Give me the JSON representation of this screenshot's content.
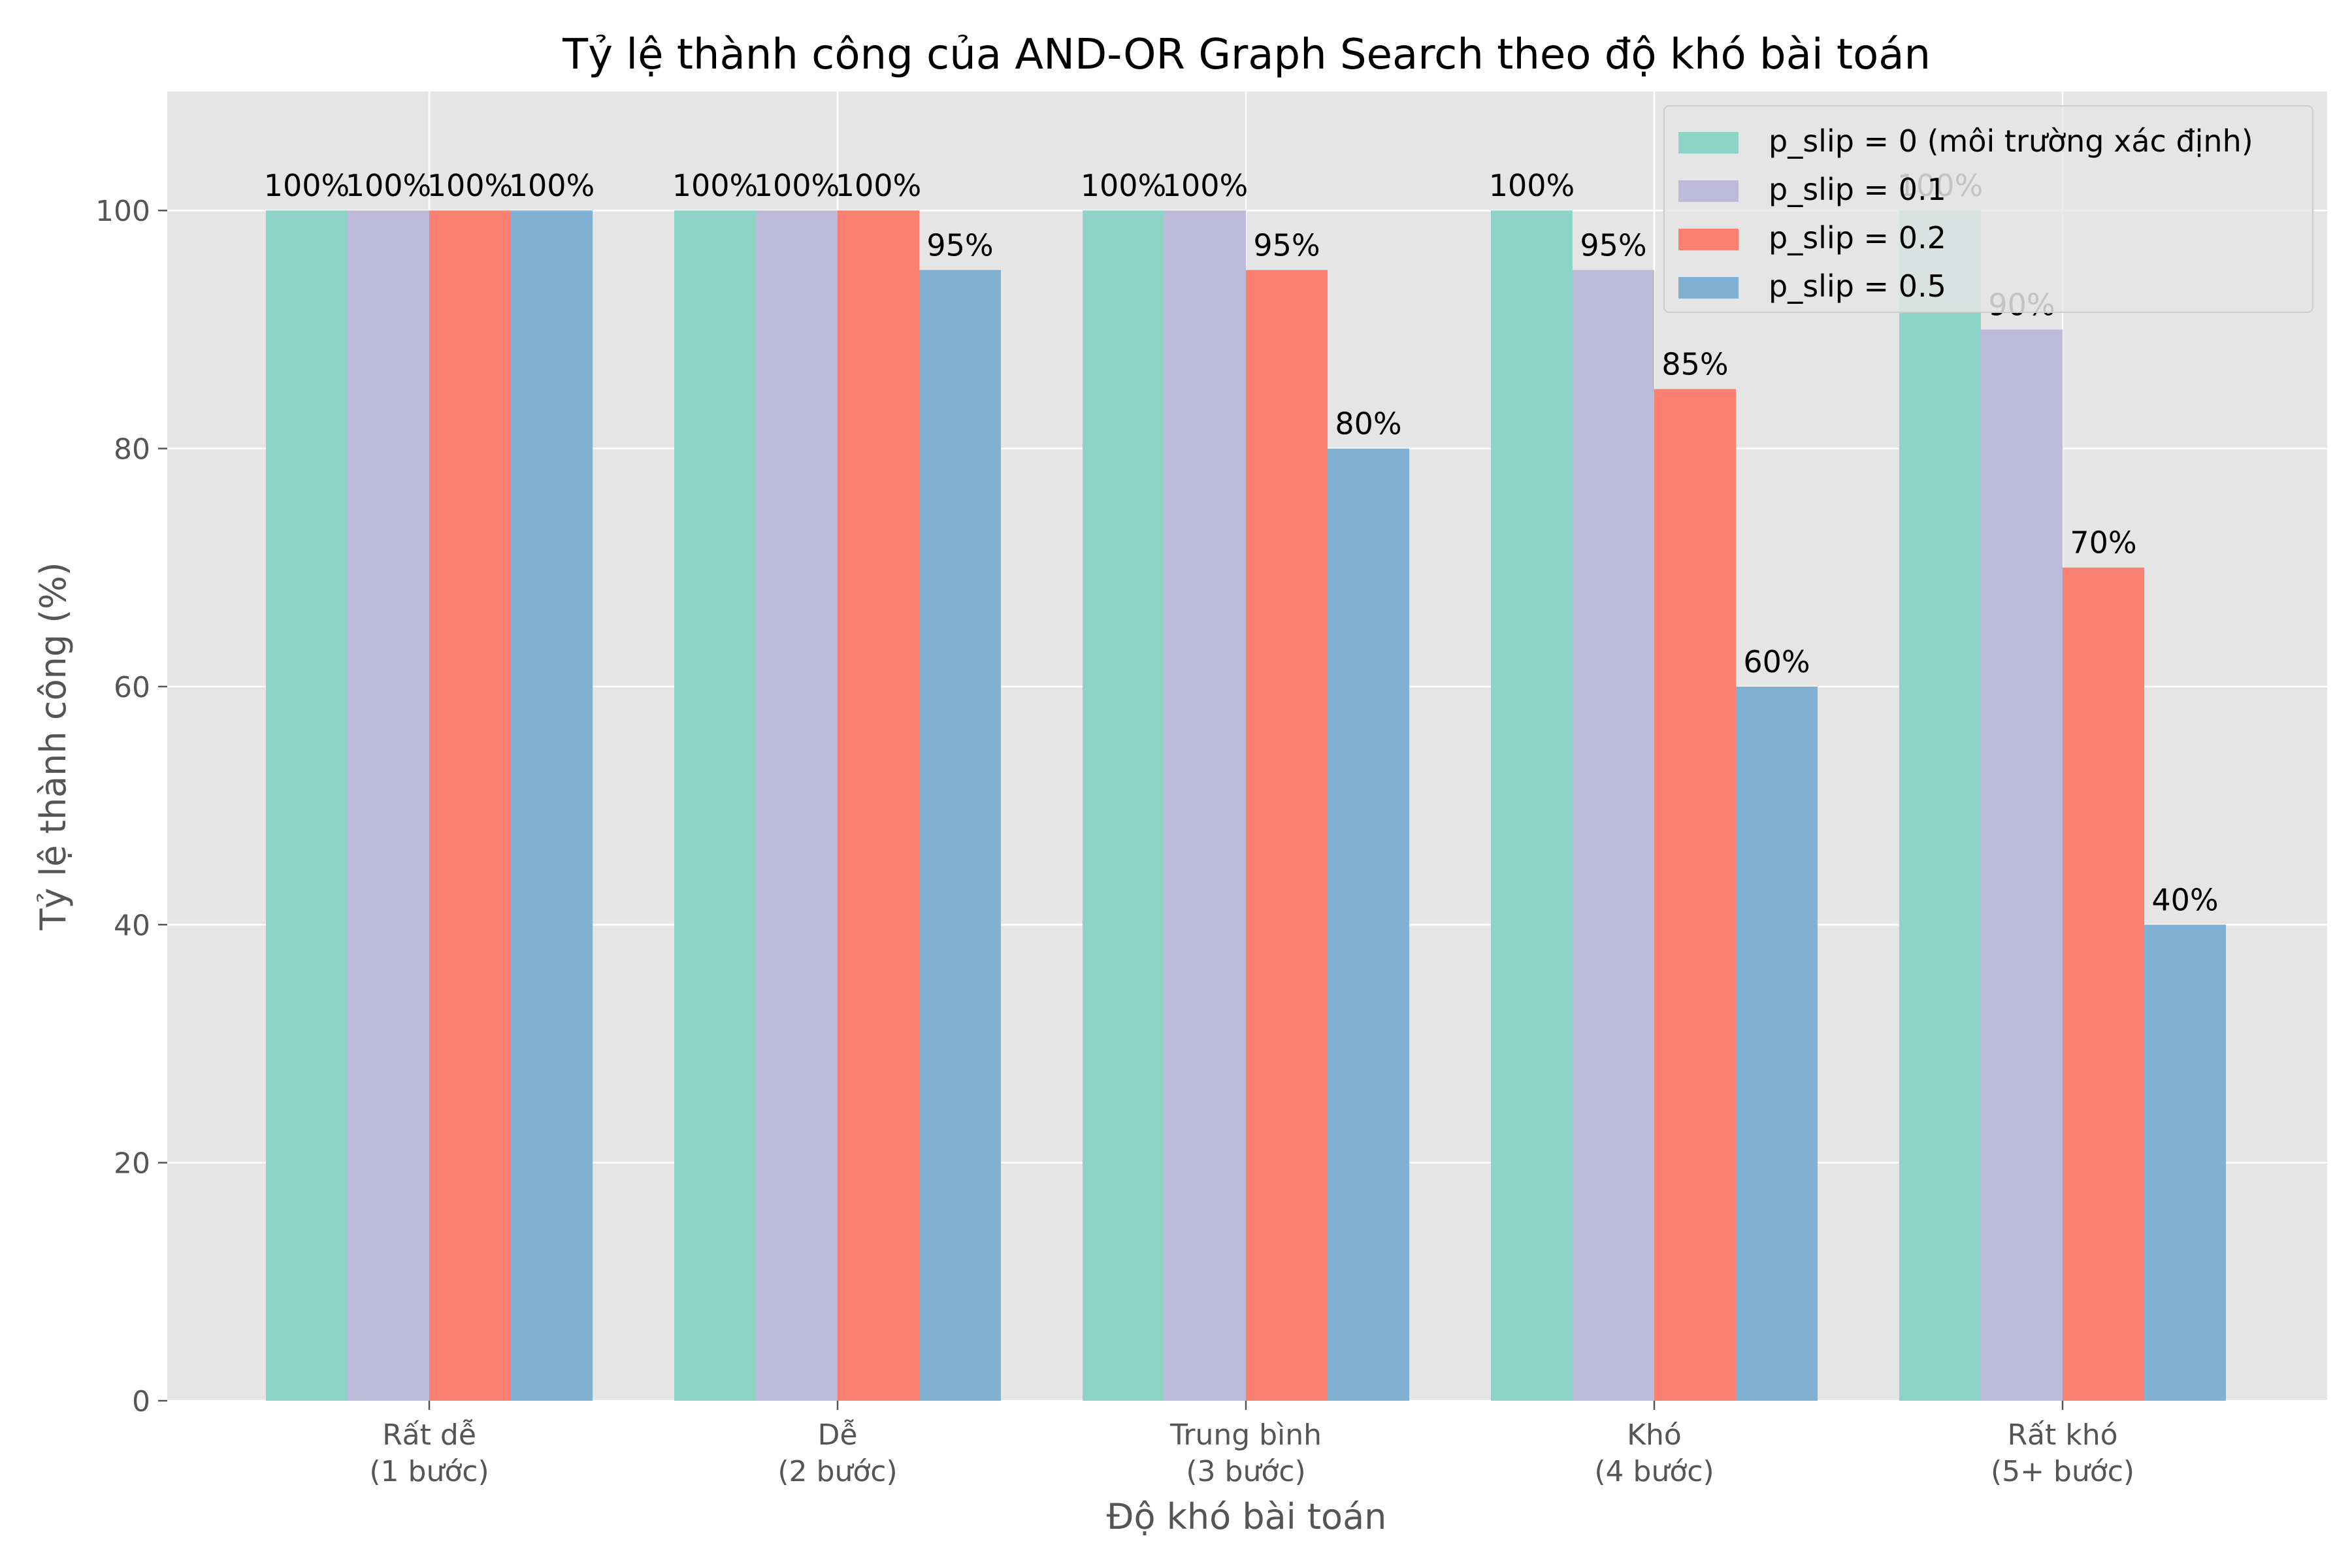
{
  "chart_data": {
    "type": "bar",
    "title": "Tỷ lệ thành công của AND-OR Graph Search theo độ khó bài toán",
    "xlabel": "Độ khó bài toán",
    "ylabel": "Tỷ lệ thành công (%)",
    "ylim": [
      0,
      110
    ],
    "yticks": [
      0,
      20,
      40,
      60,
      80,
      100
    ],
    "grid": true,
    "legend_position": "top-right",
    "categories": [
      [
        "Rất dễ",
        "(1 bước)"
      ],
      [
        "Dễ",
        "(2 bước)"
      ],
      [
        "Trung bình",
        "(3 bước)"
      ],
      [
        "Khó",
        "(4 bước)"
      ],
      [
        "Rất khó",
        "(5+ bước)"
      ]
    ],
    "value_suffix": "%",
    "series": [
      {
        "name": "p_slip = 0 (môi trường xác định)",
        "color": "#8ed3c7",
        "values": [
          100,
          100,
          100,
          100,
          100
        ]
      },
      {
        "name": "p_slip = 0.1",
        "color": "#bebada",
        "values": [
          100,
          100,
          100,
          95,
          90
        ]
      },
      {
        "name": "p_slip = 0.2",
        "color": "#fa8072",
        "values": [
          100,
          100,
          95,
          85,
          70
        ]
      },
      {
        "name": "p_slip = 0.5",
        "color": "#80b1d3",
        "values": [
          100,
          95,
          80,
          60,
          40
        ]
      }
    ],
    "colors": {
      "plot_background": "#e5e5e5",
      "grid": "#ffffff",
      "tick": "#555555"
    }
  }
}
